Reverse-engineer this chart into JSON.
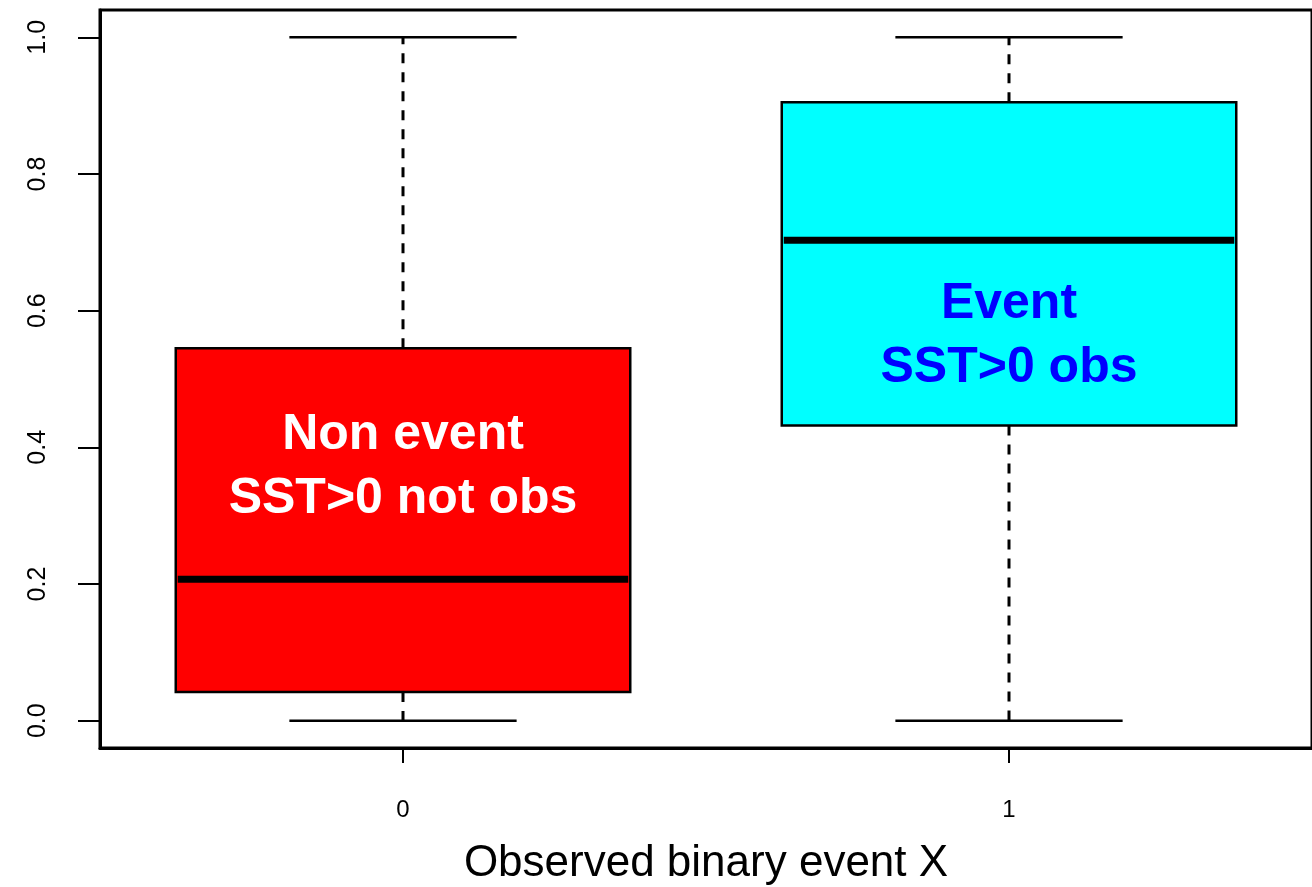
{
  "chart_data": {
    "type": "box",
    "categories": [
      "0",
      "1"
    ],
    "boxes": [
      {
        "low": 0,
        "q1": 0.042,
        "median": 0.207,
        "q3": 0.545,
        "high": 1.0
      },
      {
        "low": 0,
        "q1": 0.432,
        "median": 0.703,
        "q3": 0.905,
        "high": 1.0
      }
    ],
    "colors": [
      "#ff0000",
      "#00ffff"
    ],
    "xlabel": "Observed binary event X",
    "ylim": [
      -0.04,
      1.04
    ],
    "yticks": [
      {
        "value": 0,
        "label": "0.0"
      },
      {
        "value": 0.2,
        "label": "0.2"
      },
      {
        "value": 0.4,
        "label": "0.4"
      },
      {
        "value": 0.6,
        "label": "0.6"
      },
      {
        "value": 0.8,
        "label": "0.8"
      },
      {
        "value": 1.0,
        "label": "1.0"
      }
    ],
    "annotations": [
      "Non event\nSST>0 not obs",
      "Event\nSST>0 obs"
    ]
  }
}
